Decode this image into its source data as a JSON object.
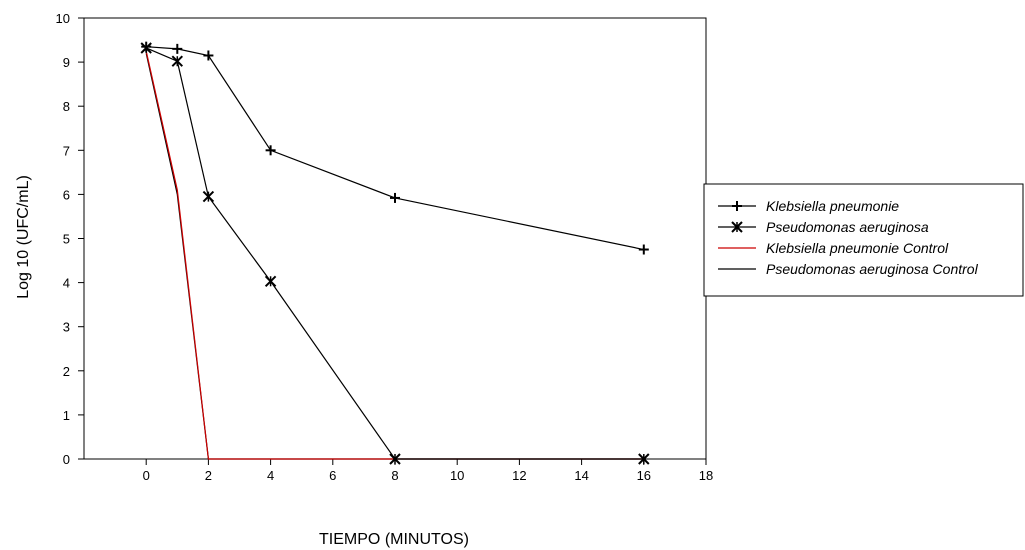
{
  "chart_data": {
    "type": "line",
    "xlabel": "TIEMPO (MINUTOS)",
    "ylabel": "Log 10 (UFC/mL)",
    "xlim": [
      -2,
      18
    ],
    "ylim": [
      0,
      10
    ],
    "xticks": [
      "0",
      "2",
      "4",
      "6",
      "8",
      "10",
      "12",
      "14",
      "16",
      "18"
    ],
    "yticks": [
      "0",
      "1",
      "2",
      "3",
      "4",
      "5",
      "6",
      "7",
      "8",
      "9",
      "10"
    ],
    "grid": false,
    "legend_position": "right",
    "series": [
      {
        "name": "Klebsiella pneumonie",
        "marker": "plus",
        "color": "#000000",
        "x": [
          0,
          1,
          2,
          4,
          8,
          16
        ],
        "y": [
          9.35,
          9.3,
          9.15,
          7.0,
          5.92,
          4.75
        ]
      },
      {
        "name": "Pseudomonas aeruginosa",
        "marker": "star",
        "color": "#000000",
        "x": [
          0,
          1,
          2,
          4,
          8,
          16
        ],
        "y": [
          9.32,
          9.02,
          5.95,
          4.03,
          0,
          0
        ]
      },
      {
        "name": "Klebsiella pneumonie Control",
        "marker": "none",
        "color": "#cc0000",
        "x": [
          0,
          1,
          2,
          16
        ],
        "y": [
          9.25,
          6.1,
          0,
          0
        ]
      },
      {
        "name": "Pseudomonas aeruginosa Control",
        "marker": "none",
        "color": "#000000",
        "x": [
          0,
          1,
          2,
          16
        ],
        "y": [
          9.2,
          6.0,
          0,
          0
        ]
      }
    ]
  }
}
